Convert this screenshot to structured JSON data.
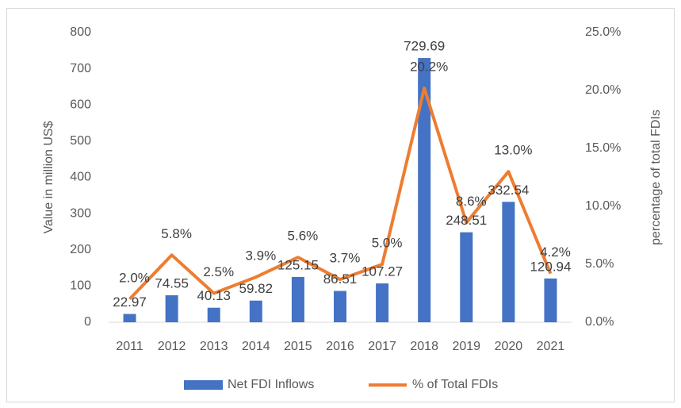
{
  "chart_data": {
    "type": "bar",
    "categories": [
      "2011",
      "2012",
      "2013",
      "2014",
      "2015",
      "2016",
      "2017",
      "2018",
      "2019",
      "2020",
      "2021"
    ],
    "series": [
      {
        "name": "Net FDI Inflows",
        "type": "bar",
        "color": "#4472c4",
        "axis": "y",
        "values": [
          22.97,
          74.55,
          40.13,
          59.82,
          125.15,
          86.51,
          107.27,
          729.69,
          248.51,
          332.54,
          120.94
        ]
      },
      {
        "name": "% of Total FDIs",
        "type": "line",
        "color": "#ed7d31",
        "axis": "y2",
        "values": [
          2.0,
          5.8,
          2.5,
          3.9,
          5.6,
          3.7,
          5.0,
          20.2,
          8.6,
          13.0,
          4.2
        ],
        "value_labels": [
          "2.0%",
          "5.8%",
          "2.5%",
          "3.9%",
          "5.6%",
          "3.7%",
          "5.0%",
          "20.2%",
          "8.6%",
          "13.0%",
          "4.2%"
        ]
      }
    ],
    "ylabel": "Value in million US$",
    "y2label": "percentage of total FDIs",
    "ylim": [
      0,
      800
    ],
    "yticks": [
      0,
      100,
      200,
      300,
      400,
      500,
      600,
      700,
      800
    ],
    "y2lim": [
      0,
      25
    ],
    "y2ticks": [
      {
        "value": 0,
        "label": "0.0%"
      },
      {
        "value": 5,
        "label": "5.0%"
      },
      {
        "value": 10,
        "label": "10.0%"
      },
      {
        "value": 15,
        "label": "15.0%"
      },
      {
        "value": 20,
        "label": "20.0%"
      },
      {
        "value": 25,
        "label": "25.0%"
      }
    ],
    "grid": false,
    "legend": "bottom"
  }
}
